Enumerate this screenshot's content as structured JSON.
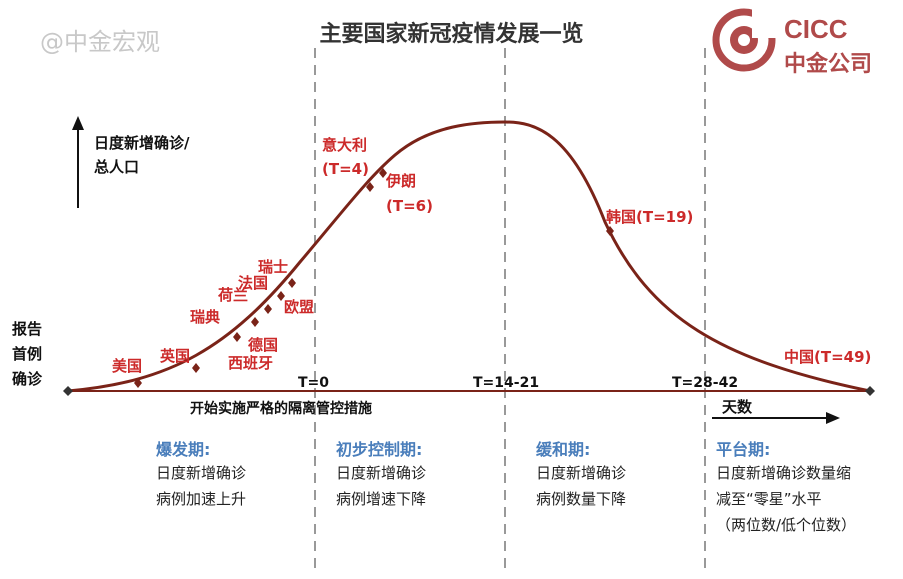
{
  "watermark": "@中金宏观",
  "title": "主要国家新冠疫情发展一览",
  "logo": {
    "text_en": "CICC",
    "text_cn": "中金公司",
    "color": "#b04a4a"
  },
  "y_axis_label_line1": "日度新增确诊/",
  "y_axis_label_line2": "总人口",
  "left_label": [
    "报告",
    "首例",
    "确诊"
  ],
  "x_axis_caption": "开始实施严格的隔离管控措施",
  "days_label": "天数",
  "ticks": {
    "t0": "T=0",
    "t14": "T=14-21",
    "t28": "T=28-42"
  },
  "countries": {
    "us": "美国",
    "uk": "英国",
    "sweden": "瑞典",
    "netherlands": "荷兰",
    "france": "法国",
    "switzerland": "瑞士",
    "germany": "德国",
    "spain": "西班牙",
    "eu": "欧盟",
    "italy_name": "意大利",
    "italy_t": "(T=4)",
    "iran_name": "伊朗",
    "iran_t": "(T=6)",
    "korea": "韩国(T=19)",
    "china": "中国(T=49)"
  },
  "phases": [
    {
      "title": "爆发期:",
      "desc": "日度新增确诊\n病例加速上升"
    },
    {
      "title": "初步控制期:",
      "desc": "日度新增确诊\n病例增速下降"
    },
    {
      "title": "缓和期:",
      "desc": "日度新增确诊\n病例数量下降"
    },
    {
      "title": "平台期:",
      "desc": "日度新增确诊数量缩\n减至“零星”水平\n（两位数/低个位数）"
    }
  ],
  "colors": {
    "curve": "#7a2318",
    "country": "#cc2a2a",
    "phase": "#4a7ebb",
    "divider": "#999999"
  }
}
